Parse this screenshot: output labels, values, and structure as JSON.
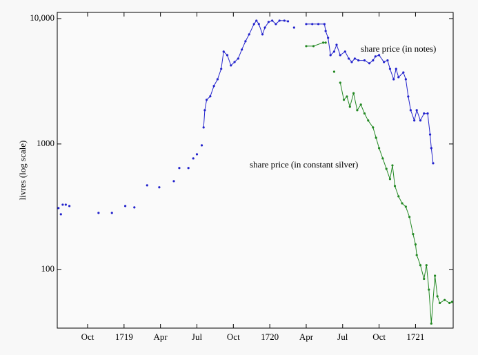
{
  "chart_data": {
    "type": "line",
    "ylabel": "livres (log scale)",
    "log_y": true,
    "xlim": [
      -5.5,
      27.1
    ],
    "ylim": [
      34,
      11200
    ],
    "xticks": [
      {
        "value": -3,
        "label": "Oct"
      },
      {
        "value": 0,
        "label": "1719"
      },
      {
        "value": 3,
        "label": "Apr"
      },
      {
        "value": 6,
        "label": "Jul"
      },
      {
        "value": 9,
        "label": "Oct"
      },
      {
        "value": 12,
        "label": "1720"
      },
      {
        "value": 15,
        "label": "Apr"
      },
      {
        "value": 18,
        "label": "Jul"
      },
      {
        "value": 21,
        "label": "Oct"
      },
      {
        "value": 24,
        "label": "1721"
      }
    ],
    "yticks": [
      100,
      1000,
      {
        "value": 10000,
        "label": "10,000"
      }
    ],
    "series": [
      {
        "name": "share price (in notes)",
        "color": "#2222cc",
        "x": [
          -5.4,
          null,
          -5.2,
          null,
          -5.05,
          null,
          -4.8,
          null,
          -4.5,
          null,
          -2.1,
          null,
          -1.0,
          null,
          0.1,
          null,
          0.85,
          null,
          1.9,
          null,
          2.9,
          null,
          4.1,
          null,
          4.55,
          null,
          5.3,
          null,
          5.7,
          null,
          6.0,
          null,
          6.4,
          null,
          6.55,
          6.65,
          6.8,
          7.1,
          7.4,
          7.7,
          8.0,
          8.2,
          8.5,
          8.8,
          9.1,
          9.4,
          9.7,
          10.0,
          10.3,
          10.7,
          10.9,
          11.1,
          11.4,
          11.6,
          11.9,
          12.2,
          12.5,
          12.8,
          13.2,
          13.5,
          null,
          14.0,
          null,
          15.0,
          15.5,
          16.0,
          16.5,
          16.6,
          16.8,
          17.0,
          17.3,
          17.5,
          17.8,
          18.2,
          18.5,
          18.75,
          19.0,
          19.3,
          19.8,
          20.2,
          20.5,
          20.7,
          21.0,
          21.4,
          21.7,
          21.9,
          22.2,
          22.4,
          22.6,
          23.0,
          23.2,
          23.4,
          23.6,
          23.9,
          24.1,
          24.4,
          24.7,
          25.0,
          25.2,
          25.3,
          25.45
        ],
        "values": [
          308,
          null,
          275,
          null,
          328,
          null,
          328,
          null,
          320,
          null,
          282,
          null,
          282,
          null,
          320,
          null,
          312,
          null,
          468,
          null,
          451,
          null,
          505,
          null,
          643,
          null,
          643,
          null,
          767,
          null,
          827,
          null,
          975,
          null,
          1355,
          1860,
          2250,
          2400,
          2900,
          3280,
          3970,
          5450,
          5110,
          4230,
          4500,
          4800,
          5660,
          6590,
          7480,
          9040,
          9630,
          9040,
          7480,
          8480,
          9390,
          9630,
          9040,
          9630,
          9630,
          9510,
          null,
          8480,
          null,
          9040,
          9040,
          9040,
          9040,
          7960,
          7020,
          5110,
          5450,
          6180,
          5110,
          5450,
          4800,
          4500,
          4800,
          4640,
          4640,
          4400,
          4640,
          4990,
          5110,
          4500,
          4640,
          3970,
          3280,
          3970,
          3410,
          3720,
          3280,
          2390,
          1860,
          1540,
          1860,
          1540,
          1750,
          1750,
          1190,
          927,
          702
        ]
      },
      {
        "name": "share price (in constant silver)",
        "color": "#228822",
        "x": [
          15.0,
          15.6,
          16.4,
          16.6,
          null,
          17.3,
          null,
          17.8,
          18.1,
          18.35,
          18.6,
          18.9,
          19.2,
          19.5,
          19.8,
          20.1,
          20.5,
          20.75,
          21.0,
          21.3,
          21.6,
          21.9,
          22.1,
          22.3,
          22.6,
          22.9,
          23.2,
          23.5,
          23.8,
          24.0,
          24.1,
          24.4,
          24.7,
          24.9,
          25.1,
          25.3,
          25.6,
          25.8,
          26.0,
          26.4,
          26.8,
          27.0
        ],
        "values": [
          6030,
          6030,
          6430,
          6430,
          null,
          3770,
          null,
          3080,
          2250,
          2390,
          1980,
          2540,
          1860,
          2060,
          1750,
          1540,
          1355,
          1120,
          927,
          767,
          634,
          525,
          675,
          462,
          382,
          336,
          316,
          262,
          191,
          158,
          130,
          108,
          84,
          108,
          69,
          37,
          89,
          61,
          54,
          57,
          54,
          55
        ]
      }
    ]
  }
}
